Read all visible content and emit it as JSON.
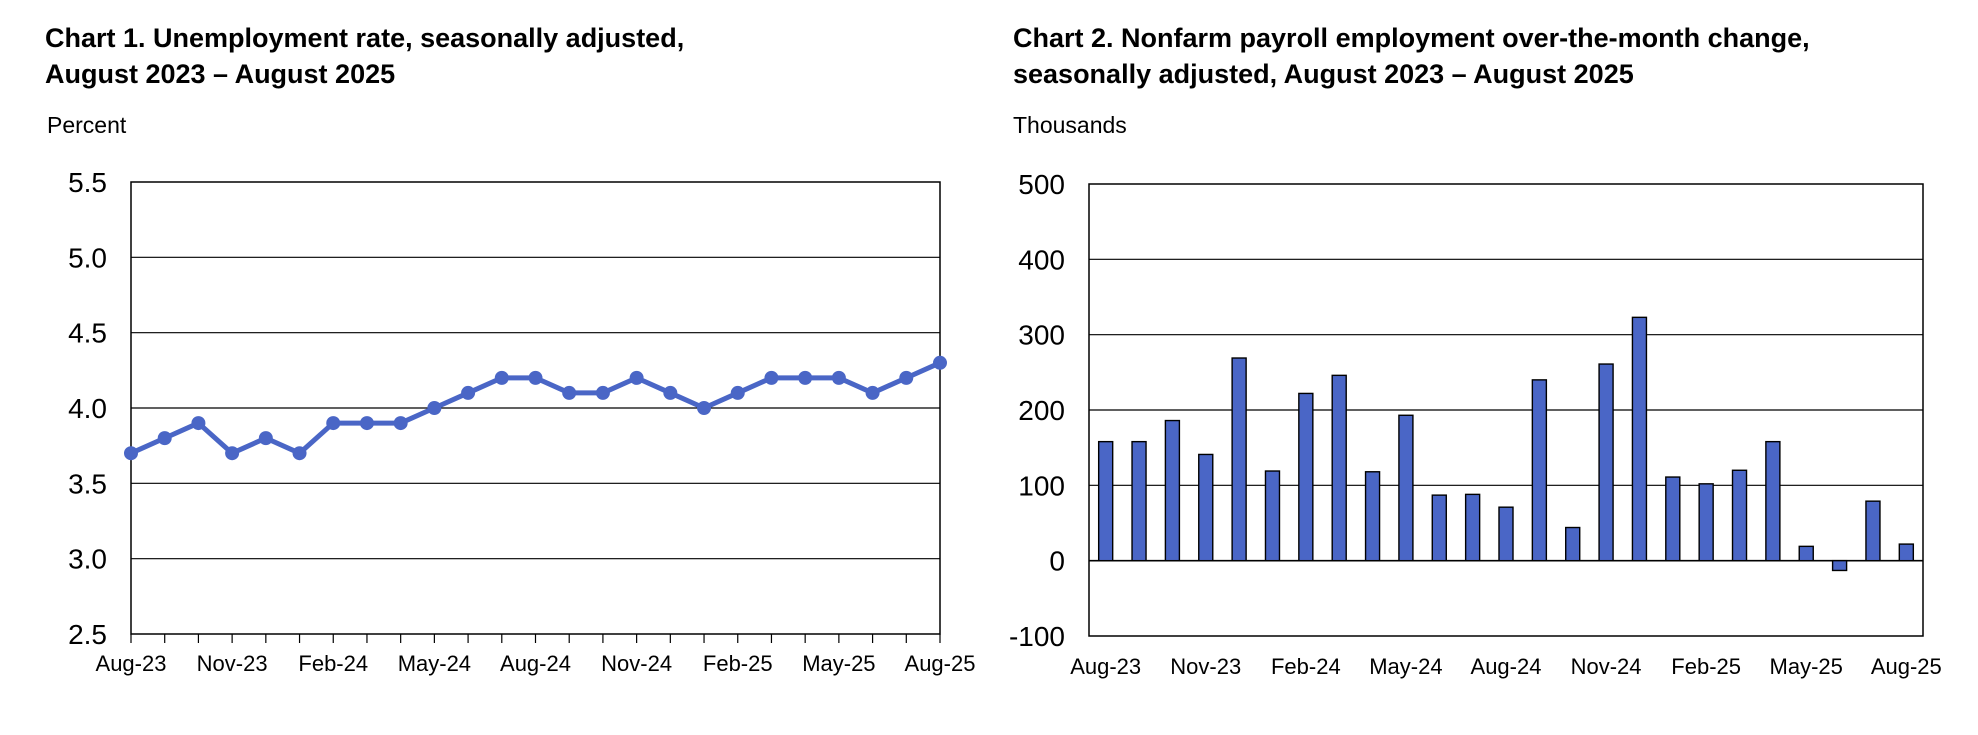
{
  "charts": [
    {
      "title_line1": "Chart 1. Unemployment rate, seasonally adjusted,",
      "title_line2": "August 2023 – August 2025",
      "unit": "Percent"
    },
    {
      "title_line1": "Chart 2. Nonfarm payroll employment over-the-month change,",
      "title_line2": "seasonally adjusted, August 2023 – August 2025",
      "unit": "Thousands"
    }
  ],
  "chart_data": [
    {
      "type": "line",
      "title": "Chart 1. Unemployment rate, seasonally adjusted, August 2023 – August 2025",
      "ylabel": "Percent",
      "xlabel": "",
      "ylim": [
        2.5,
        5.5
      ],
      "y_ticks": [
        "5.5",
        "5.0",
        "4.5",
        "4.0",
        "3.5",
        "3.0",
        "2.5"
      ],
      "x_tick_labels": [
        "Aug-23",
        "Nov-23",
        "Feb-24",
        "May-24",
        "Aug-24",
        "Nov-24",
        "Feb-25",
        "May-25",
        "Aug-25"
      ],
      "categories": [
        "Aug-23",
        "Sep-23",
        "Oct-23",
        "Nov-23",
        "Dec-23",
        "Jan-24",
        "Feb-24",
        "Mar-24",
        "Apr-24",
        "May-24",
        "Jun-24",
        "Jul-24",
        "Aug-24",
        "Sep-24",
        "Oct-24",
        "Nov-24",
        "Dec-24",
        "Jan-25",
        "Feb-25",
        "Mar-25",
        "Apr-25",
        "May-25",
        "Jun-25",
        "Jul-25",
        "Aug-25"
      ],
      "values": [
        3.7,
        3.8,
        3.9,
        3.7,
        3.8,
        3.7,
        3.9,
        3.9,
        3.9,
        4.0,
        4.1,
        4.2,
        4.2,
        4.1,
        4.1,
        4.2,
        4.1,
        4.0,
        4.1,
        4.2,
        4.2,
        4.2,
        4.1,
        4.2,
        4.3
      ],
      "grid": true,
      "legend": "none",
      "color": "#4a66c6"
    },
    {
      "type": "bar",
      "title": "Chart 2. Nonfarm payroll employment over-the-month change, seasonally adjusted, August 2023 – August 2025",
      "ylabel": "Thousands",
      "xlabel": "",
      "ylim": [
        -100,
        500
      ],
      "y_ticks": [
        "500",
        "400",
        "300",
        "200",
        "100",
        "0",
        "-100"
      ],
      "x_tick_labels": [
        "Aug-23",
        "Nov-23",
        "Feb-24",
        "May-24",
        "Aug-24",
        "Nov-24",
        "Feb-25",
        "May-25",
        "Aug-25"
      ],
      "categories": [
        "Aug-23",
        "Sep-23",
        "Oct-23",
        "Nov-23",
        "Dec-23",
        "Jan-24",
        "Feb-24",
        "Mar-24",
        "Apr-24",
        "May-24",
        "Jun-24",
        "Jul-24",
        "Aug-24",
        "Sep-24",
        "Oct-24",
        "Nov-24",
        "Dec-24",
        "Jan-25",
        "Feb-25",
        "Mar-25",
        "Apr-25",
        "May-25",
        "Jun-25",
        "Jul-25",
        "Aug-25"
      ],
      "values": [
        158,
        158,
        186,
        141,
        269,
        119,
        222,
        246,
        118,
        193,
        87,
        88,
        71,
        240,
        44,
        261,
        323,
        111,
        102,
        120,
        158,
        19,
        -13,
        79,
        22
      ],
      "grid": true,
      "legend": "none",
      "color": "#4a66c6"
    }
  ]
}
